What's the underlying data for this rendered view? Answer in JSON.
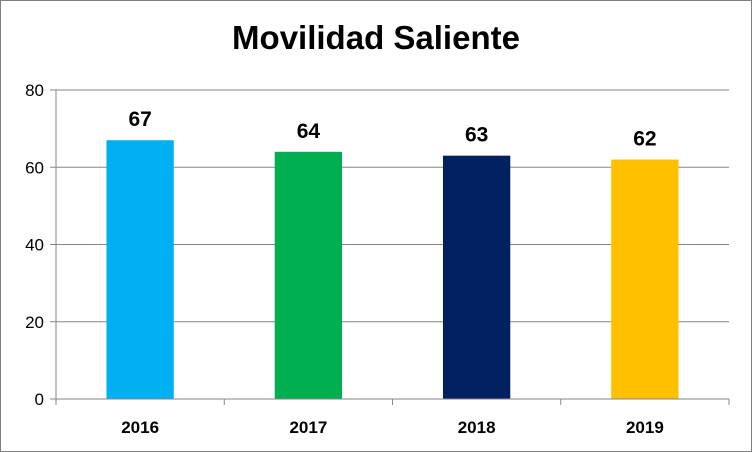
{
  "chart_data": {
    "type": "bar",
    "title": "Movilidad Saliente",
    "xlabel": "",
    "ylabel": "",
    "categories": [
      "2016",
      "2017",
      "2018",
      "2019"
    ],
    "values": [
      67,
      64,
      63,
      62
    ],
    "bar_colors": [
      "#00b0f0",
      "#00b050",
      "#002060",
      "#ffc000"
    ],
    "ylim": [
      0,
      80
    ],
    "yticks": [
      0,
      20,
      40,
      60,
      80
    ],
    "grid": true,
    "legend": "none",
    "data_labels": true
  }
}
